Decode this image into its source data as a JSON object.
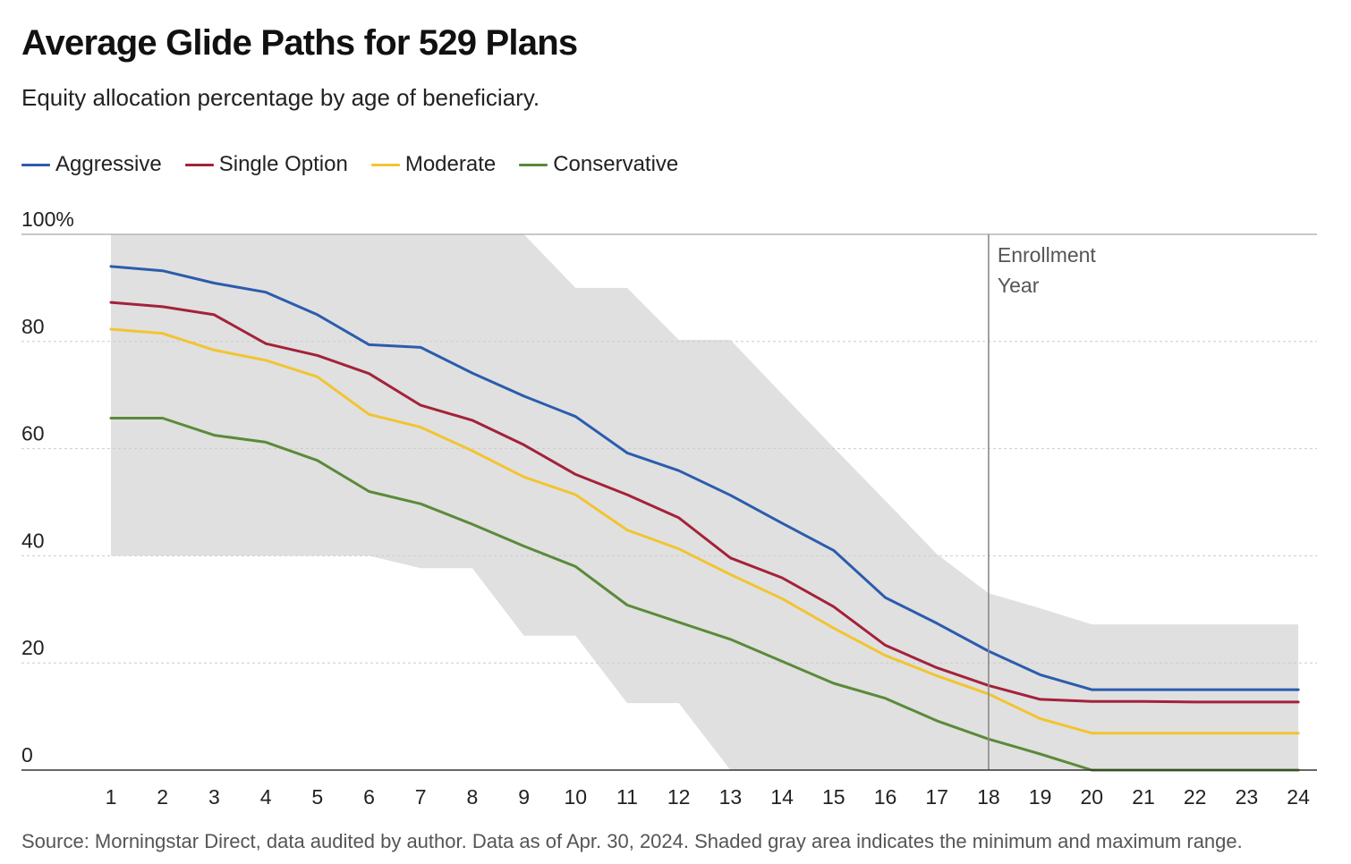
{
  "chart_data": {
    "type": "line",
    "title": "Average Glide Paths for 529 Plans",
    "subtitle": "Equity allocation percentage by age of beneficiary.",
    "xlabel": "",
    "ylabel": "",
    "x": [
      1,
      2,
      3,
      4,
      5,
      6,
      7,
      8,
      9,
      10,
      11,
      12,
      13,
      14,
      15,
      16,
      17,
      18,
      19,
      20,
      21,
      22,
      23,
      24
    ],
    "x_tick_labels": [
      "1",
      "2",
      "3",
      "4",
      "5",
      "6",
      "7",
      "8",
      "9",
      "10",
      "11",
      "12",
      "13",
      "14",
      "15",
      "16",
      "17",
      "18",
      "19",
      "20",
      "21",
      "22",
      "23",
      "24"
    ],
    "ylim": [
      0,
      100
    ],
    "y_ticks": [
      0,
      20,
      40,
      60,
      80,
      100
    ],
    "y_tick_labels": [
      "0",
      "20",
      "40",
      "60",
      "80",
      "100%"
    ],
    "grid": true,
    "legend_position": "top-left",
    "series": [
      {
        "name": "Aggressive",
        "color": "#2b5cad",
        "values": [
          94,
          93.2,
          90.9,
          89.2,
          85,
          79.4,
          78.9,
          74.1,
          69.8,
          66,
          59.2,
          55.9,
          51.3,
          46.1,
          41,
          32.2,
          27.4,
          22.2,
          17.8,
          15,
          15,
          15,
          15,
          15
        ]
      },
      {
        "name": "Single Option",
        "color": "#a3223a",
        "values": [
          87.3,
          86.5,
          85,
          79.6,
          77.4,
          74,
          68.1,
          65.3,
          60.7,
          55.2,
          51.4,
          47.1,
          39.6,
          35.9,
          30.5,
          23.3,
          19.1,
          15.8,
          13.2,
          12.8,
          12.8,
          12.7,
          12.7,
          12.7
        ]
      },
      {
        "name": "Moderate",
        "color": "#f2c431",
        "values": [
          82.3,
          81.5,
          78.4,
          76.5,
          73.4,
          66.4,
          64,
          59.6,
          54.7,
          51.4,
          44.8,
          41.3,
          36.5,
          32,
          26.5,
          21.4,
          17.6,
          14.2,
          9.6,
          6.9,
          6.9,
          6.9,
          6.9,
          6.9
        ]
      },
      {
        "name": "Conservative",
        "color": "#5b8a3a",
        "values": [
          65.7,
          65.7,
          62.5,
          61.2,
          57.8,
          52,
          49.7,
          45.9,
          41.8,
          38,
          30.8,
          27.6,
          24.4,
          20.3,
          16.2,
          13.4,
          9.2,
          5.8,
          3,
          0,
          0,
          0,
          0,
          0
        ]
      }
    ],
    "range_band": {
      "color": "#e0e0e0",
      "upper": [
        100,
        100,
        100,
        100,
        100,
        100,
        100,
        100,
        100,
        90,
        90,
        80.3,
        80.3,
        70.2,
        60.2,
        50.3,
        40.3,
        33,
        30.2,
        27.2,
        27.2,
        27.2,
        27.2,
        27.2
      ],
      "lower": [
        40,
        40,
        40,
        40,
        40,
        40,
        37.7,
        37.7,
        25.1,
        25.1,
        12.5,
        12.5,
        0,
        0,
        0,
        0,
        0,
        0,
        0,
        0,
        0,
        0,
        0,
        0
      ]
    },
    "annotation": {
      "text_lines": [
        "Enrollment",
        "Year"
      ],
      "x": 18
    }
  },
  "source": "Source: Morningstar Direct, data audited by author. Data as of Apr. 30, 2024. Shaded gray area indicates the minimum and maximum range."
}
